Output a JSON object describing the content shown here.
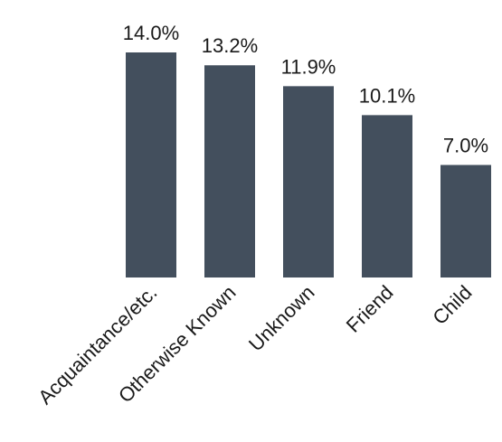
{
  "chart_data": {
    "type": "bar",
    "categories": [
      "Acquaintance/etc.",
      "Otherwise Known",
      "Unknown",
      "Friend",
      "Child"
    ],
    "values": [
      14.0,
      13.2,
      11.9,
      10.1,
      7.0
    ],
    "value_labels": [
      "14.0%",
      "13.2%",
      "11.9%",
      "10.1%",
      "7.0%"
    ],
    "unit": "%",
    "ylim": [
      0,
      14.0
    ],
    "grid": false,
    "legend": "none",
    "bar_color": "#434f5d"
  }
}
